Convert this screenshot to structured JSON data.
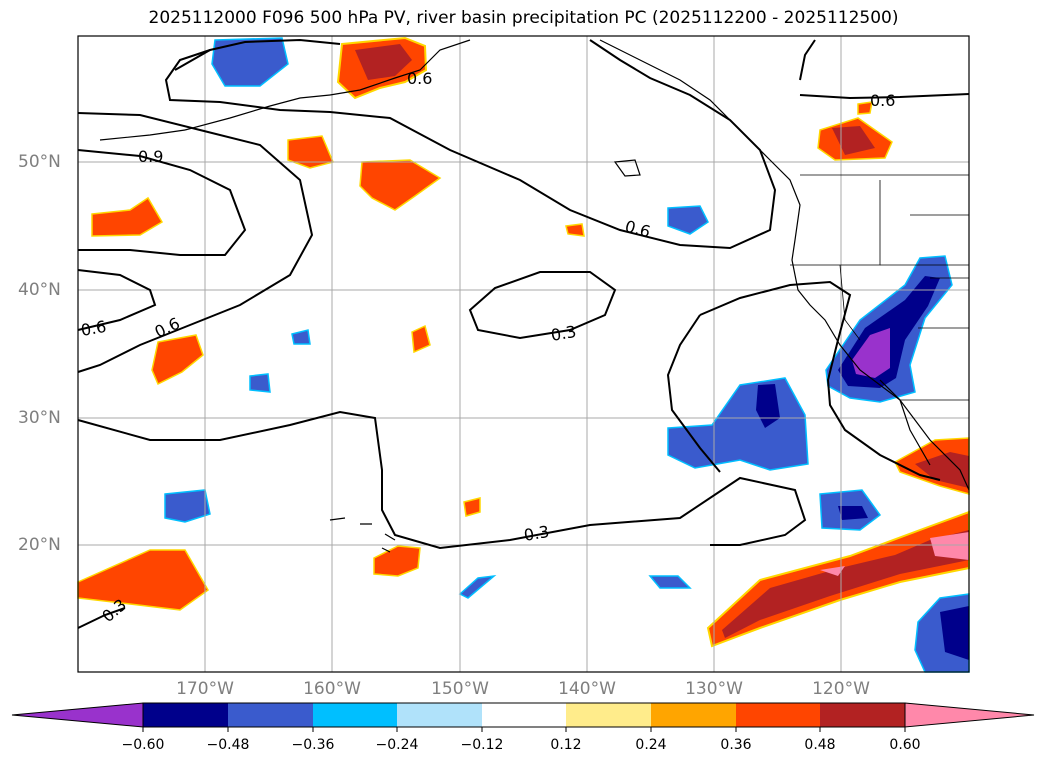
{
  "title": "2025112000 F096 500 hPa PV, river basin precipitation PC (2025112200 - 2025112500)",
  "lat_labels": [
    "50°N",
    "40°N",
    "30°N",
    "20°N"
  ],
  "lon_labels": [
    "170°W",
    "160°W",
    "150°W",
    "140°W",
    "130°W",
    "120°W"
  ],
  "contour_labels": [
    "0.9",
    "0.6",
    "0.6",
    "0.6",
    "0.6",
    "0.6",
    "0.3",
    "0.3",
    "0.3"
  ],
  "colorbar": {
    "tick_labels": [
      "−0.60",
      "−0.48",
      "−0.36",
      "−0.24",
      "−0.12",
      "0.12",
      "0.24",
      "0.36",
      "0.48",
      "0.60"
    ],
    "colors": [
      "#9932cc",
      "#00008b",
      "#3a5bcd",
      "#00bfff",
      "#b0e2fa",
      "#ffffff",
      "#ffec8b",
      "#ffa500",
      "#ff4500",
      "#b22222",
      "#ff88aa"
    ]
  },
  "colors": {
    "land_border": "#000000",
    "grid": "#a9a9a9",
    "negative_strong": "#00008b",
    "negative": "#3a5bcd",
    "positive": "#ff4500",
    "positive_strong": "#b22222"
  }
}
